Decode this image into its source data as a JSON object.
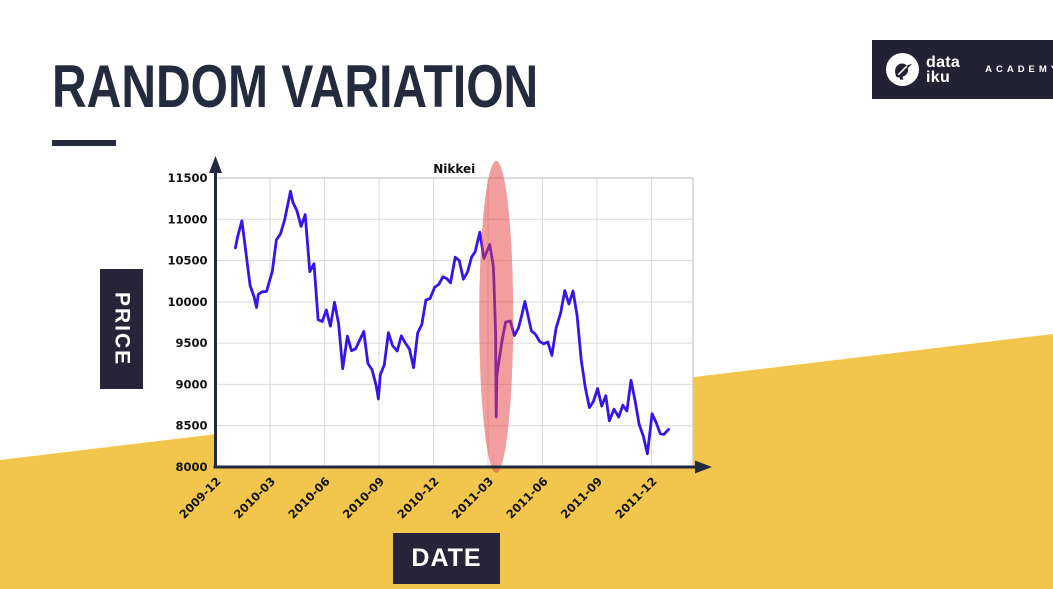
{
  "slide": {
    "title": "RANDOM VARIATION",
    "colors": {
      "navy": "#242B3F",
      "label_box_navy": "#272439",
      "yellow_accent": "#F2C64D"
    }
  },
  "logo": {
    "brand_line1": "data",
    "brand_line2": "iku",
    "suffix": "ACADEMY"
  },
  "axis_labels": {
    "y": "PRICE",
    "x": "DATE"
  },
  "chart_data": {
    "type": "line",
    "title": "Nikkei",
    "ylim": [
      8000,
      11500
    ],
    "yticks": [
      8000,
      8500,
      9000,
      9500,
      10000,
      10500,
      11000,
      11500
    ],
    "xtick_labels": [
      "2009-12",
      "2010-03",
      "2010-06",
      "2010-09",
      "2010-12",
      "2011-03",
      "2011-06",
      "2011-09",
      "2011-12"
    ],
    "grid": true,
    "style": {
      "line_color": "#3714E8",
      "axis_color": "#232A40",
      "grid_color": "#D9D9D9",
      "spine_color": "#C8C8C8",
      "tick_label_color": "#111111",
      "highlight_fill": "#E53C3E",
      "highlight_opacity": 0.5
    },
    "annotation": {
      "shape": "ellipse",
      "highlight_date": "2011-03-15",
      "meaning": "sudden drop highlighted on the Nikkei price curve"
    },
    "series": [
      {
        "name": "Nikkei",
        "dates": [
          "2010-01-04",
          "2010-01-08",
          "2010-01-15",
          "2010-01-22",
          "2010-01-29",
          "2010-02-05",
          "2010-02-09",
          "2010-02-12",
          "2010-02-19",
          "2010-02-26",
          "2010-03-05",
          "2010-03-12",
          "2010-03-19",
          "2010-03-26",
          "2010-04-05",
          "2010-04-09",
          "2010-04-16",
          "2010-04-23",
          "2010-04-30",
          "2010-05-07",
          "2010-05-14",
          "2010-05-21",
          "2010-05-28",
          "2010-06-04",
          "2010-06-11",
          "2010-06-18",
          "2010-06-25",
          "2010-07-01",
          "2010-07-09",
          "2010-07-16",
          "2010-07-23",
          "2010-07-30",
          "2010-08-06",
          "2010-08-13",
          "2010-08-20",
          "2010-08-27",
          "2010-08-31",
          "2010-09-03",
          "2010-09-10",
          "2010-09-17",
          "2010-09-24",
          "2010-10-01",
          "2010-10-08",
          "2010-10-15",
          "2010-10-22",
          "2010-10-29",
          "2010-11-05",
          "2010-11-12",
          "2010-11-19",
          "2010-11-26",
          "2010-12-03",
          "2010-12-10",
          "2010-12-17",
          "2010-12-24",
          "2010-12-30",
          "2011-01-07",
          "2011-01-14",
          "2011-01-21",
          "2011-01-28",
          "2011-02-04",
          "2011-02-10",
          "2011-02-18",
          "2011-02-25",
          "2011-03-04",
          "2011-03-10",
          "2011-03-11",
          "2011-03-14",
          "2011-03-15",
          "2011-03-16",
          "2011-03-18",
          "2011-03-25",
          "2011-03-31",
          "2011-04-08",
          "2011-04-15",
          "2011-04-22",
          "2011-04-28",
          "2011-05-02",
          "2011-05-13",
          "2011-05-20",
          "2011-05-27",
          "2011-06-03",
          "2011-06-10",
          "2011-06-17",
          "2011-06-24",
          "2011-07-01",
          "2011-07-08",
          "2011-07-15",
          "2011-07-22",
          "2011-07-29",
          "2011-08-05",
          "2011-08-12",
          "2011-08-19",
          "2011-08-26",
          "2011-09-02",
          "2011-09-09",
          "2011-09-16",
          "2011-09-22",
          "2011-09-30",
          "2011-10-07",
          "2011-10-14",
          "2011-10-21",
          "2011-10-28",
          "2011-11-04",
          "2011-11-11",
          "2011-11-18",
          "2011-11-25",
          "2011-12-02",
          "2011-12-09",
          "2011-12-16",
          "2011-12-22",
          "2011-12-30"
        ],
        "values": [
          10654,
          10798,
          10982,
          10590,
          10198,
          10057,
          9932,
          10092,
          10123,
          10126,
          10369,
          10751,
          10824,
          10996,
          11339,
          11204,
          11102,
          10914,
          11057,
          10365,
          10462,
          9785,
          9762,
          9901,
          9705,
          9995,
          9737,
          9191,
          9585,
          9408,
          9431,
          9537,
          9642,
          9253,
          9179,
          8991,
          8824,
          9114,
          9239,
          9626,
          9472,
          9404,
          9589,
          9500,
          9427,
          9202,
          9626,
          9725,
          10022,
          10040,
          10178,
          10212,
          10304,
          10279,
          10229,
          10541,
          10499,
          10274,
          10360,
          10543,
          10605,
          10843,
          10526,
          10693,
          10434,
          10254,
          9620,
          8605,
          9093,
          9206,
          9536,
          9755,
          9768,
          9591,
          9685,
          9849,
          10004,
          9648,
          9607,
          9521,
          9492,
          9514,
          9351,
          9678,
          9868,
          10137,
          9974,
          10132,
          9833,
          9299,
          8963,
          8719,
          8797,
          8950,
          8737,
          8864,
          8560,
          8700,
          8605,
          8748,
          8678,
          9050,
          8801,
          8514,
          8375,
          8160,
          8644,
          8536,
          8402,
          8395,
          8455
        ]
      }
    ]
  }
}
